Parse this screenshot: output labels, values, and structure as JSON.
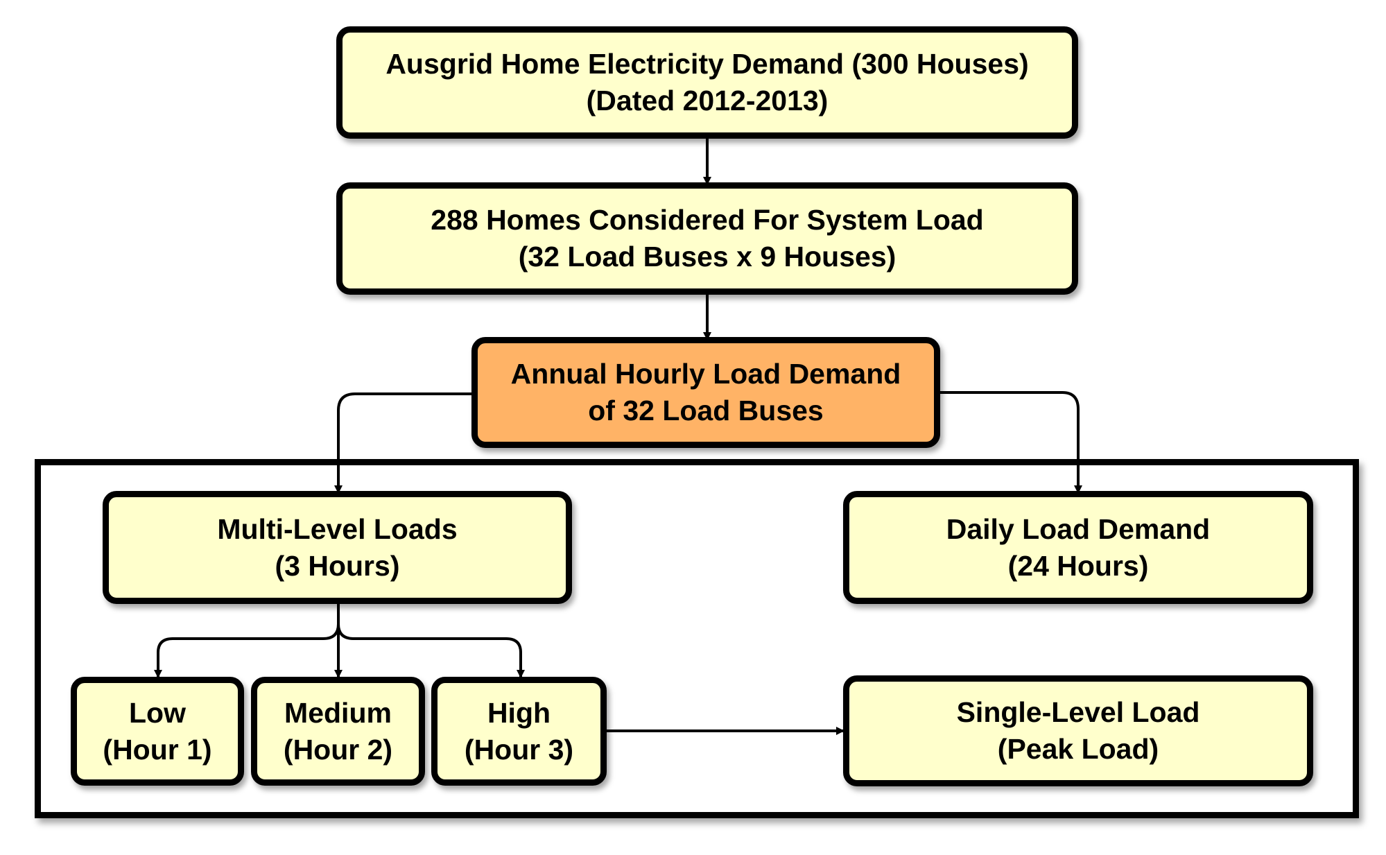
{
  "colors": {
    "box_fill": "#ffffcc",
    "highlight_fill": "#ffb366",
    "border": "#000000",
    "arrow": "#000000"
  },
  "nodes": {
    "ausgrid": {
      "line1": "Ausgrid Home Electricity Demand (300 Houses)",
      "line2": "(Dated 2012-2013)"
    },
    "homes": {
      "line1": "288 Homes Considered For System Load",
      "line2": "(32 Load Buses x 9 Houses)"
    },
    "annual": {
      "line1": "Annual Hourly Load Demand",
      "line2": "of 32 Load Buses"
    },
    "multi_level": {
      "line1": "Multi-Level Loads",
      "line2": "(3 Hours)"
    },
    "daily": {
      "line1": "Daily Load Demand",
      "line2": "(24 Hours)"
    },
    "low": {
      "line1": "Low",
      "line2": "(Hour 1)"
    },
    "medium": {
      "line1": "Medium",
      "line2": "(Hour 2)"
    },
    "high": {
      "line1": "High",
      "line2": "(Hour 3)"
    },
    "single_level": {
      "line1": "Single-Level Load",
      "line2": "(Peak Load)"
    }
  }
}
